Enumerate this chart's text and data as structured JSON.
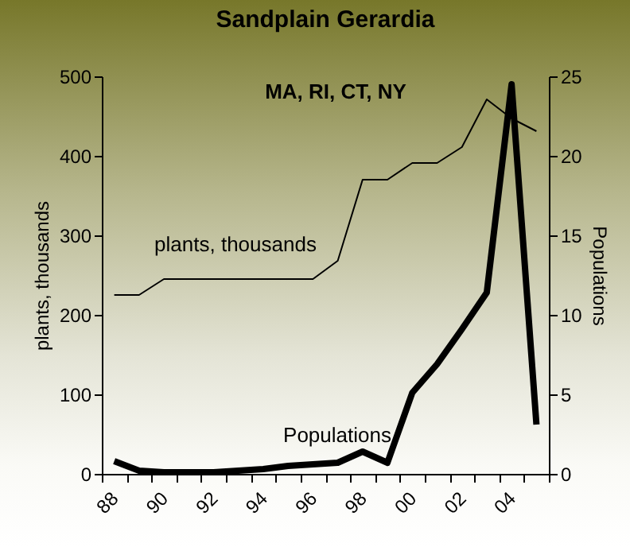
{
  "chart_data": {
    "type": "line",
    "title": "Sandplain Gerardia",
    "ylabel": "plants, thousands",
    "y2label": "Populations",
    "annotations": [
      "MA, RI, CT, NY"
    ],
    "categories": [
      "88",
      null,
      "90",
      null,
      "92",
      null,
      "94",
      null,
      "96",
      null,
      "98",
      null,
      "00",
      null,
      "02",
      null,
      "04",
      null
    ],
    "series": [
      {
        "name": "plants, thousands",
        "color": "#000000",
        "values": [
          225,
          225,
          245,
          245,
          245,
          245,
          245,
          245,
          245,
          268,
          370,
          370,
          391,
          391,
          411,
          471,
          447,
          431
        ]
      },
      {
        "name": "Populations",
        "color": "#000000",
        "axis": "y2",
        "values": [
          0.8,
          0.2,
          0.1,
          0.1,
          0.1,
          0.2,
          0.3,
          0.5,
          0.6,
          0.7,
          1.4,
          0.7,
          5.1,
          6.9,
          9.1,
          11.4,
          24.5,
          3.1
        ]
      }
    ],
    "ylim": [
      0,
      500
    ],
    "yticks": [
      0,
      100,
      200,
      300,
      400,
      500
    ],
    "y2lim": [
      0,
      25
    ],
    "y2ticks": [
      0,
      5,
      10,
      15,
      20,
      25
    ],
    "grid": false,
    "marker": "none",
    "line_style": "solid"
  }
}
